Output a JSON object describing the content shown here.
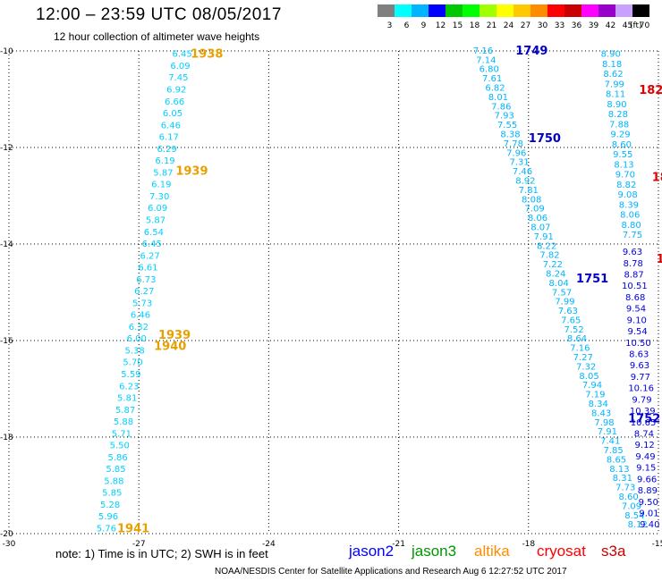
{
  "header": {
    "title": "12:00  –  23:59 UTC 08/05/2017",
    "subtitle": "12 hour collection of altimeter wave heights"
  },
  "legend": {
    "unit": "(ft)",
    "bins": [
      {
        "label": "3",
        "color": "#808080"
      },
      {
        "label": "6",
        "color": "#00ffff"
      },
      {
        "label": "9",
        "color": "#00b4ff"
      },
      {
        "label": "12",
        "color": "#0000ff"
      },
      {
        "label": "15",
        "color": "#00c800"
      },
      {
        "label": "18",
        "color": "#00ff00"
      },
      {
        "label": "21",
        "color": "#a0ff00"
      },
      {
        "label": "24",
        "color": "#ffff00"
      },
      {
        "label": "27",
        "color": "#ffc800"
      },
      {
        "label": "30",
        "color": "#ff8c00"
      },
      {
        "label": "33",
        "color": "#ff0000"
      },
      {
        "label": "36",
        "color": "#c80000"
      },
      {
        "label": "39",
        "color": "#ff00ff"
      },
      {
        "label": "42",
        "color": "#9600c8"
      },
      {
        "label": "45",
        "color": "#c8a0ff"
      },
      {
        "label": "70",
        "color": "#000000"
      }
    ]
  },
  "axes": {
    "lon_ticks": [
      "-30",
      "-27",
      "-24",
      "-21",
      "-18",
      "-15"
    ],
    "lat_ticks": [
      "-10",
      "-12",
      "-14",
      "-16",
      "-18",
      "-20"
    ]
  },
  "tracks": [
    {
      "satellite": "altika",
      "color": "#00d0ff",
      "start_lon": -26.0,
      "start_lat": -10.05,
      "end_lon": -27.75,
      "end_lat": -19.88,
      "values": [
        "6.45",
        "6.09",
        "7.45",
        "6.92",
        "6.66",
        "6.05",
        "6.46",
        "6.17",
        "6.29",
        "6.19",
        "5.87",
        "6.19",
        "7.30",
        "6.09",
        "5.87",
        "6.54",
        "6.45",
        "6.27",
        "6.61",
        "6.73",
        "6.27",
        "5.73",
        "6.46",
        "6.32",
        "6.00",
        "5.38",
        "5.70",
        "5.59",
        "6.23",
        "5.81",
        "5.87",
        "5.88",
        "5.71",
        "5.50",
        "5.86",
        "5.85",
        "5.88",
        "5.85",
        "5.28",
        "5.96",
        "5.76"
      ]
    },
    {
      "satellite": "jason3",
      "color": "#00b4ff",
      "start_lon": -19.05,
      "start_lat": -9.98,
      "end_lon": -15.48,
      "end_lat": -19.8,
      "values": [
        "7.16",
        "7.14",
        "6.80",
        "7.61",
        "6.82",
        "8.01",
        "7.86",
        "7.93",
        "7.55",
        "8.38",
        "7.78",
        "7.96",
        "7.31",
        "7.46",
        "8.92",
        "7.81",
        "8.08",
        "7.09",
        "8.06",
        "8.07",
        "7.91",
        "8.22",
        "7.82",
        "7.22",
        "8.24",
        "8.04",
        "7.57",
        "7.99",
        "7.63",
        "7.65",
        "7.52",
        "8.64",
        "7.16",
        "7.27",
        "7.32",
        "8.05",
        "7.94",
        "7.19",
        "8.34",
        "8.43",
        "7.98",
        "7.91",
        "7.41",
        "7.85",
        "8.65",
        "8.13",
        "8.31",
        "7.73",
        "8.60",
        "7.09",
        "8.54",
        "8.12"
      ]
    },
    {
      "satellite": "cryosat",
      "color": "#00b4ff",
      "start_lon": -16.1,
      "start_lat": -10.05,
      "end_lon": -15.6,
      "end_lat": -13.8,
      "values": [
        "8.90",
        "8.18",
        "8.62",
        "7.99",
        "8.11",
        "8.90",
        "8.28",
        "7.88",
        "9.29",
        "8.60",
        "9.55",
        "8.13",
        "9.70",
        "8.82",
        "9.08",
        "8.39",
        "8.06",
        "8.80",
        "7.75"
      ]
    },
    {
      "satellite": "cryosat",
      "color": "#0000e0",
      "start_lon": -15.6,
      "start_lat": -14.15,
      "end_lon": -15.2,
      "end_lat": -19.8,
      "values": [
        "9.63",
        "8.78",
        "8.87",
        "10.51",
        "8.68",
        "9.54",
        "9.10",
        "9.54",
        "10.50",
        "8.63",
        "9.63",
        "9.77",
        "10.16",
        "9.79",
        "10.39",
        "10.65",
        "8.74",
        "9.12",
        "9.49",
        "9.15",
        "9.66",
        "8.89",
        "9.50",
        "9.01",
        "9.40"
      ]
    }
  ],
  "time_labels": [
    {
      "text": "1938",
      "lon": -25.8,
      "lat": -10.05,
      "color": "#e8a000"
    },
    {
      "text": "1939",
      "lon": -26.15,
      "lat": -12.47,
      "color": "#e8a000"
    },
    {
      "text": "1939",
      "lon": -26.55,
      "lat": -15.87,
      "color": "#e8a000"
    },
    {
      "text": "1940",
      "lon": -26.65,
      "lat": -16.1,
      "color": "#e8a000"
    },
    {
      "text": "1941",
      "lon": -27.5,
      "lat": -19.88,
      "color": "#e8a000"
    },
    {
      "text": "1749",
      "lon": -18.3,
      "lat": -9.98,
      "color": "#0000c8"
    },
    {
      "text": "1750",
      "lon": -18.0,
      "lat": -11.8,
      "color": "#0000c8"
    },
    {
      "text": "1751",
      "lon": -16.9,
      "lat": -14.7,
      "color": "#0000c8"
    },
    {
      "text": "1752",
      "lon": -15.7,
      "lat": -17.6,
      "color": "#0000c8"
    },
    {
      "text": "182",
      "lon": -15.45,
      "lat": -10.8,
      "color": "#e00000"
    },
    {
      "text": "18",
      "lon": -15.15,
      "lat": -12.6,
      "color": "#e00000"
    },
    {
      "text": "1",
      "lon": -15.05,
      "lat": -14.3,
      "color": "#e00000"
    }
  ],
  "note": "note:  1) Time is in UTC;  2) SWH is in feet",
  "satellites": [
    {
      "name": "jason2",
      "color": "#0000ff"
    },
    {
      "name": "jason3",
      "color": "#009600"
    },
    {
      "name": "altika",
      "color": "#ff8c00"
    },
    {
      "name": "cryosat",
      "color": "#ff0000"
    },
    {
      "name": "s3a",
      "color": "#c80000"
    }
  ],
  "footer": "NOAA/NESDIS Center for Satellite Applications and Research      Aug  6 12:27:52 UTC 2017"
}
